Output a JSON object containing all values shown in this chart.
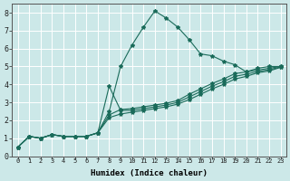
{
  "xlabel": "Humidex (Indice chaleur)",
  "ylabel": "",
  "xlim": [
    -0.5,
    23.5
  ],
  "ylim": [
    0,
    8.5
  ],
  "xticks": [
    0,
    1,
    2,
    3,
    4,
    5,
    6,
    7,
    8,
    9,
    10,
    11,
    12,
    13,
    14,
    15,
    16,
    17,
    18,
    19,
    20,
    21,
    22,
    23
  ],
  "yticks": [
    0,
    1,
    2,
    3,
    4,
    5,
    6,
    7,
    8
  ],
  "bg_color": "#cce8e8",
  "line_color": "#1a6b5a",
  "grid_color": "#ffffff",
  "series": [
    {
      "x": [
        0,
        1,
        2,
        3,
        4,
        5,
        6,
        7,
        8,
        9,
        10,
        11,
        12,
        13,
        14,
        15,
        16,
        17,
        18,
        19,
        20,
        21,
        22,
        23
      ],
      "y": [
        0.5,
        1.1,
        1.0,
        1.2,
        1.1,
        1.1,
        1.1,
        1.3,
        2.5,
        5.0,
        6.2,
        7.2,
        8.1,
        7.7,
        7.2,
        6.5,
        5.7,
        5.6,
        5.3,
        5.1,
        4.7,
        4.9,
        5.0,
        5.0
      ]
    },
    {
      "x": [
        0,
        1,
        2,
        3,
        4,
        5,
        6,
        7,
        8,
        9,
        10,
        11,
        12,
        13,
        14,
        15,
        16,
        17,
        18,
        19,
        20,
        21,
        22,
        23
      ],
      "y": [
        0.5,
        1.1,
        1.0,
        1.2,
        1.1,
        1.1,
        1.1,
        1.3,
        2.3,
        2.6,
        2.65,
        2.75,
        2.85,
        2.95,
        3.1,
        3.45,
        3.75,
        4.05,
        4.3,
        4.6,
        4.7,
        4.8,
        4.9,
        5.0
      ]
    },
    {
      "x": [
        0,
        1,
        2,
        3,
        4,
        5,
        6,
        7,
        8,
        9,
        10,
        11,
        12,
        13,
        14,
        15,
        16,
        17,
        18,
        19,
        20,
        21,
        22,
        23
      ],
      "y": [
        0.5,
        1.1,
        1.0,
        1.2,
        1.1,
        1.1,
        1.1,
        1.3,
        2.15,
        2.35,
        2.45,
        2.55,
        2.65,
        2.75,
        2.9,
        3.15,
        3.45,
        3.75,
        4.0,
        4.3,
        4.45,
        4.65,
        4.75,
        4.95
      ]
    },
    {
      "x": [
        0,
        1,
        2,
        3,
        4,
        5,
        6,
        7,
        8,
        9,
        10,
        11,
        12,
        13,
        14,
        15,
        16,
        17,
        18,
        19,
        20,
        21,
        22,
        23
      ],
      "y": [
        0.5,
        1.1,
        1.0,
        1.2,
        1.1,
        1.1,
        1.1,
        1.3,
        3.9,
        2.55,
        2.55,
        2.65,
        2.75,
        2.85,
        3.0,
        3.3,
        3.6,
        3.9,
        4.15,
        4.45,
        4.57,
        4.72,
        4.82,
        4.97
      ]
    }
  ]
}
